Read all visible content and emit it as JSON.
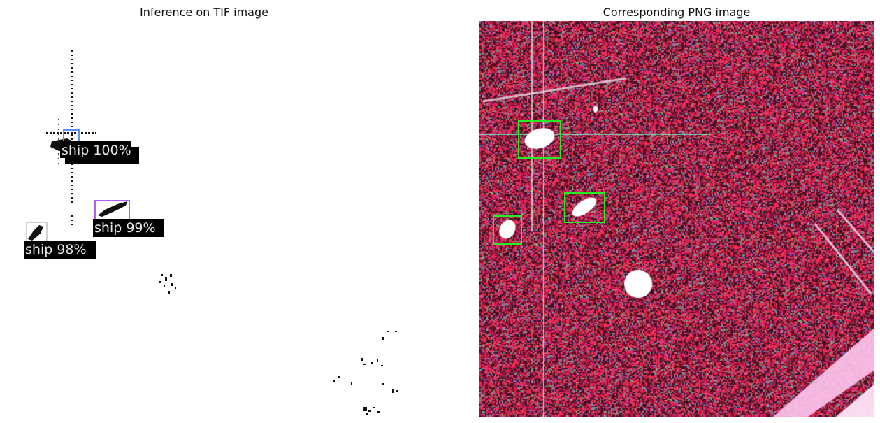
{
  "left": {
    "title": "Inference on TIF image",
    "detections": [
      {
        "label": "ship 100%",
        "box_color": "#5b8ff9"
      },
      {
        "label": "ship 99%",
        "box_color": "#b060f0"
      },
      {
        "label": "ship 98%",
        "box_color": "#d0d0d0"
      }
    ]
  },
  "right": {
    "title": "Corresponding PNG image",
    "box_color": "#22ee22",
    "background_color": "#4a0c1c"
  }
}
